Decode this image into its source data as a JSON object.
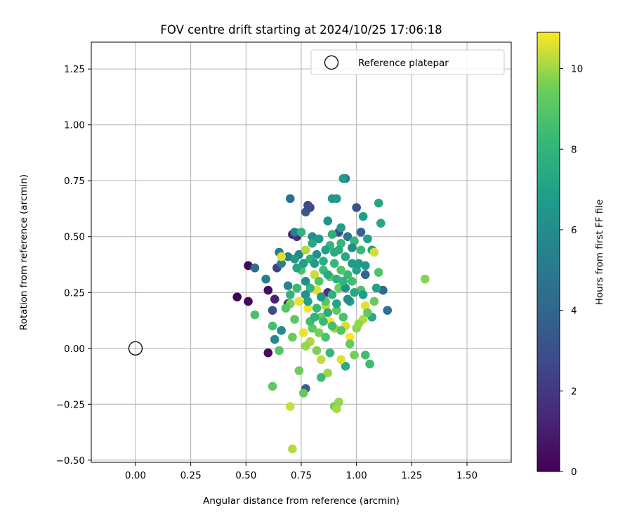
{
  "chart_data": {
    "type": "scatter",
    "title": "FOV centre drift starting at 2024/10/25 17:06:18",
    "xlabel": "Angular distance from reference (arcmin)",
    "ylabel": "Rotation from reference (arcmin)",
    "xlim": [
      -0.2,
      1.7
    ],
    "ylim": [
      -0.51,
      1.37
    ],
    "xticks": [
      0.0,
      0.25,
      0.5,
      0.75,
      1.0,
      1.25,
      1.5
    ],
    "xtick_labels": [
      "0.00",
      "0.25",
      "0.50",
      "0.75",
      "1.00",
      "1.25",
      "1.50"
    ],
    "yticks": [
      -0.5,
      -0.25,
      0.0,
      0.25,
      0.5,
      0.75,
      1.0,
      1.25
    ],
    "ytick_labels": [
      "−0.50",
      "−0.25",
      "0.00",
      "0.25",
      "0.50",
      "0.75",
      "1.00",
      "1.25"
    ],
    "grid": true,
    "legend": {
      "position": "top-right",
      "entries": [
        "Reference platepar"
      ]
    },
    "reference_point": {
      "x": 0.0,
      "y": 0.0,
      "label": "Reference platepar"
    },
    "colorbar": {
      "label": "Hours from first FF file",
      "colormap": "viridis",
      "range": [
        0,
        10.9
      ],
      "ticks": [
        0,
        2,
        4,
        6,
        8,
        10
      ],
      "tick_labels": [
        "0",
        "2",
        "4",
        "6",
        "8",
        "10"
      ]
    },
    "points": [
      {
        "x": 0.46,
        "y": 0.23,
        "c": 0.1
      },
      {
        "x": 0.51,
        "y": 0.21,
        "c": 0.2
      },
      {
        "x": 0.51,
        "y": 0.37,
        "c": 0.3
      },
      {
        "x": 0.6,
        "y": 0.26,
        "c": 0.5
      },
      {
        "x": 0.6,
        "y": -0.02,
        "c": 0.4
      },
      {
        "x": 0.63,
        "y": 0.22,
        "c": 1.2
      },
      {
        "x": 0.69,
        "y": 0.2,
        "c": 1.0
      },
      {
        "x": 0.71,
        "y": 0.51,
        "c": 1.1
      },
      {
        "x": 0.73,
        "y": 0.5,
        "c": 1.8
      },
      {
        "x": 0.64,
        "y": 0.36,
        "c": 2.5
      },
      {
        "x": 0.62,
        "y": 0.17,
        "c": 3.0
      },
      {
        "x": 0.77,
        "y": 0.61,
        "c": 3.5
      },
      {
        "x": 0.78,
        "y": 0.64,
        "c": 2.6
      },
      {
        "x": 0.79,
        "y": 0.63,
        "c": 2.8
      },
      {
        "x": 0.77,
        "y": -0.18,
        "c": 3.5
      },
      {
        "x": 0.87,
        "y": 0.25,
        "c": 1.9
      },
      {
        "x": 0.92,
        "y": 0.52,
        "c": 3.0
      },
      {
        "x": 1.0,
        "y": 0.63,
        "c": 3.2
      },
      {
        "x": 1.04,
        "y": 0.33,
        "c": 4.0
      },
      {
        "x": 1.12,
        "y": 0.26,
        "c": 4.2
      },
      {
        "x": 1.14,
        "y": 0.17,
        "c": 4.5
      },
      {
        "x": 0.54,
        "y": 0.36,
        "c": 4.3
      },
      {
        "x": 0.7,
        "y": 0.67,
        "c": 4.5
      },
      {
        "x": 0.95,
        "y": 0.76,
        "c": 4.6
      },
      {
        "x": 0.96,
        "y": 0.5,
        "c": 4.8
      },
      {
        "x": 1.02,
        "y": 0.52,
        "c": 4.0
      },
      {
        "x": 0.65,
        "y": 0.43,
        "c": 5.0
      },
      {
        "x": 0.59,
        "y": 0.31,
        "c": 5.1
      },
      {
        "x": 0.66,
        "y": 0.38,
        "c": 5.3
      },
      {
        "x": 0.69,
        "y": 0.41,
        "c": 5.4
      },
      {
        "x": 0.72,
        "y": 0.52,
        "c": 5.5
      },
      {
        "x": 0.74,
        "y": 0.42,
        "c": 5.6
      },
      {
        "x": 0.69,
        "y": 0.28,
        "c": 5.7
      },
      {
        "x": 0.63,
        "y": 0.04,
        "c": 5.8
      },
      {
        "x": 0.66,
        "y": 0.08,
        "c": 5.9
      },
      {
        "x": 0.77,
        "y": 0.3,
        "c": 6.0
      },
      {
        "x": 0.8,
        "y": 0.5,
        "c": 6.1
      },
      {
        "x": 0.82,
        "y": 0.42,
        "c": 6.2
      },
      {
        "x": 0.87,
        "y": 0.57,
        "c": 6.3
      },
      {
        "x": 0.89,
        "y": 0.67,
        "c": 6.4
      },
      {
        "x": 0.91,
        "y": 0.67,
        "c": 6.5
      },
      {
        "x": 0.94,
        "y": 0.76,
        "c": 6.6
      },
      {
        "x": 0.98,
        "y": 0.38,
        "c": 6.7
      },
      {
        "x": 1.03,
        "y": 0.59,
        "c": 6.8
      },
      {
        "x": 1.05,
        "y": 0.49,
        "c": 6.9
      },
      {
        "x": 1.07,
        "y": 0.44,
        "c": 7.0
      },
      {
        "x": 1.09,
        "y": 0.27,
        "c": 7.1
      },
      {
        "x": 1.1,
        "y": 0.65,
        "c": 7.2
      },
      {
        "x": 1.11,
        "y": 0.56,
        "c": 7.3
      },
      {
        "x": 1.07,
        "y": 0.14,
        "c": 7.4
      },
      {
        "x": 0.95,
        "y": -0.08,
        "c": 7.5
      },
      {
        "x": 0.9,
        "y": 0.43,
        "c": 7.6
      },
      {
        "x": 0.85,
        "y": 0.39,
        "c": 7.7
      },
      {
        "x": 0.79,
        "y": 0.4,
        "c": 7.8
      },
      {
        "x": 0.75,
        "y": 0.52,
        "c": 7.9
      },
      {
        "x": 0.88,
        "y": 0.46,
        "c": 8.0
      },
      {
        "x": 0.93,
        "y": 0.47,
        "c": 8.1
      },
      {
        "x": 0.99,
        "y": 0.48,
        "c": 8.2
      },
      {
        "x": 1.02,
        "y": 0.44,
        "c": 8.3
      },
      {
        "x": 1.06,
        "y": -0.07,
        "c": 8.4
      },
      {
        "x": 1.04,
        "y": -0.03,
        "c": 8.5
      },
      {
        "x": 0.62,
        "y": 0.1,
        "c": 8.6
      },
      {
        "x": 0.54,
        "y": 0.15,
        "c": 8.7
      },
      {
        "x": 0.62,
        "y": -0.17,
        "c": 9.2
      },
      {
        "x": 0.65,
        "y": -0.01,
        "c": 9.0
      },
      {
        "x": 0.76,
        "y": -0.2,
        "c": 9.3
      },
      {
        "x": 0.9,
        "y": -0.26,
        "c": 9.5
      },
      {
        "x": 1.1,
        "y": 0.34,
        "c": 8.8
      },
      {
        "x": 1.31,
        "y": 0.31,
        "c": 9.8
      },
      {
        "x": 1.08,
        "y": 0.43,
        "c": 10.5
      },
      {
        "x": 0.66,
        "y": 0.41,
        "c": 10.6
      },
      {
        "x": 0.7,
        "y": -0.26,
        "c": 10.4
      },
      {
        "x": 0.71,
        "y": -0.45,
        "c": 10.2
      },
      {
        "x": 0.91,
        "y": -0.27,
        "c": 10.1
      },
      {
        "x": 0.92,
        "y": -0.24,
        "c": 9.9
      },
      {
        "x": 0.7,
        "y": 0.2,
        "c": 9.6
      },
      {
        "x": 0.74,
        "y": 0.21,
        "c": 10.7
      },
      {
        "x": 0.78,
        "y": 0.18,
        "c": 10.8
      },
      {
        "x": 0.82,
        "y": 0.26,
        "c": 10.6
      },
      {
        "x": 0.86,
        "y": 0.19,
        "c": 10.3
      },
      {
        "x": 0.88,
        "y": 0.12,
        "c": 10.8
      },
      {
        "x": 0.9,
        "y": 0.09,
        "c": 10.0
      },
      {
        "x": 0.92,
        "y": 0.27,
        "c": 9.4
      },
      {
        "x": 0.95,
        "y": 0.1,
        "c": 10.5
      },
      {
        "x": 0.97,
        "y": 0.05,
        "c": 10.9
      },
      {
        "x": 1.0,
        "y": 0.09,
        "c": 9.8
      },
      {
        "x": 1.03,
        "y": 0.13,
        "c": 10.2
      },
      {
        "x": 1.04,
        "y": 0.19,
        "c": 10.6
      },
      {
        "x": 0.79,
        "y": 0.03,
        "c": 10.1
      },
      {
        "x": 0.82,
        "y": -0.01,
        "c": 9.7
      },
      {
        "x": 0.84,
        "y": -0.05,
        "c": 10.3
      },
      {
        "x": 0.87,
        "y": -0.11,
        "c": 10.0
      },
      {
        "x": 0.93,
        "y": -0.05,
        "c": 10.6
      },
      {
        "x": 0.74,
        "y": -0.1,
        "c": 9.5
      },
      {
        "x": 0.77,
        "y": 0.01,
        "c": 9.9
      },
      {
        "x": 0.8,
        "y": 0.09,
        "c": 9.2
      },
      {
        "x": 0.84,
        "y": 0.14,
        "c": 9.4
      },
      {
        "x": 0.86,
        "y": 0.21,
        "c": 9.0
      },
      {
        "x": 0.88,
        "y": 0.32,
        "c": 9.3
      },
      {
        "x": 0.81,
        "y": 0.33,
        "c": 10.4
      },
      {
        "x": 0.77,
        "y": 0.44,
        "c": 10.2
      },
      {
        "x": 0.72,
        "y": 0.13,
        "c": 9.1
      },
      {
        "x": 0.68,
        "y": 0.18,
        "c": 8.9
      },
      {
        "x": 0.71,
        "y": 0.05,
        "c": 9.4
      },
      {
        "x": 0.76,
        "y": 0.07,
        "c": 10.7
      },
      {
        "x": 0.83,
        "y": 0.07,
        "c": 9.6
      },
      {
        "x": 0.91,
        "y": 0.17,
        "c": 9.1
      },
      {
        "x": 0.94,
        "y": 0.14,
        "c": 8.7
      },
      {
        "x": 0.97,
        "y": 0.02,
        "c": 9.3
      },
      {
        "x": 0.99,
        "y": -0.03,
        "c": 9.6
      },
      {
        "x": 1.01,
        "y": 0.11,
        "c": 9.9
      },
      {
        "x": 1.05,
        "y": 0.16,
        "c": 9.2
      },
      {
        "x": 1.08,
        "y": 0.21,
        "c": 9.4
      },
      {
        "x": 1.02,
        "y": 0.26,
        "c": 8.6
      },
      {
        "x": 0.98,
        "y": 0.3,
        "c": 8.5
      },
      {
        "x": 0.96,
        "y": 0.33,
        "c": 8.3
      },
      {
        "x": 0.93,
        "y": 0.35,
        "c": 8.8
      },
      {
        "x": 0.9,
        "y": 0.38,
        "c": 8.2
      },
      {
        "x": 0.85,
        "y": 0.35,
        "c": 8.4
      },
      {
        "x": 0.83,
        "y": 0.3,
        "c": 8.9
      },
      {
        "x": 0.79,
        "y": 0.27,
        "c": 8.1
      },
      {
        "x": 0.75,
        "y": 0.35,
        "c": 8.7
      },
      {
        "x": 0.73,
        "y": 0.27,
        "c": 8.3
      },
      {
        "x": 0.7,
        "y": 0.24,
        "c": 8.0
      },
      {
        "x": 0.79,
        "y": 0.12,
        "c": 8.5
      },
      {
        "x": 0.82,
        "y": 0.18,
        "c": 8.2
      },
      {
        "x": 0.86,
        "y": 0.05,
        "c": 8.7
      },
      {
        "x": 0.88,
        "y": -0.02,
        "c": 8.1
      },
      {
        "x": 0.84,
        "y": -0.13,
        "c": 8.4
      },
      {
        "x": 0.89,
        "y": 0.24,
        "c": 7.9
      },
      {
        "x": 0.92,
        "y": 0.44,
        "c": 7.6
      },
      {
        "x": 0.95,
        "y": 0.41,
        "c": 7.3
      },
      {
        "x": 0.97,
        "y": 0.21,
        "c": 6.9
      },
      {
        "x": 1.0,
        "y": 0.35,
        "c": 7.1
      },
      {
        "x": 1.01,
        "y": 0.38,
        "c": 6.6
      },
      {
        "x": 1.04,
        "y": 0.37,
        "c": 6.4
      },
      {
        "x": 0.86,
        "y": 0.44,
        "c": 7.0
      },
      {
        "x": 0.81,
        "y": 0.38,
        "c": 6.7
      },
      {
        "x": 0.76,
        "y": 0.38,
        "c": 6.9
      },
      {
        "x": 0.73,
        "y": 0.36,
        "c": 7.2
      },
      {
        "x": 0.72,
        "y": 0.4,
        "c": 6.5
      },
      {
        "x": 0.77,
        "y": 0.24,
        "c": 6.2
      },
      {
        "x": 0.84,
        "y": 0.23,
        "c": 6.4
      },
      {
        "x": 0.95,
        "y": 0.27,
        "c": 6.1
      },
      {
        "x": 0.98,
        "y": 0.45,
        "c": 6.0
      },
      {
        "x": 0.83,
        "y": 0.49,
        "c": 6.6
      },
      {
        "x": 0.8,
        "y": 0.47,
        "c": 7.4
      },
      {
        "x": 0.89,
        "y": 0.51,
        "c": 7.7
      },
      {
        "x": 0.93,
        "y": 0.54,
        "c": 6.8
      },
      {
        "x": 0.87,
        "y": 0.33,
        "c": 7.5
      },
      {
        "x": 0.91,
        "y": 0.31,
        "c": 7.8
      },
      {
        "x": 0.94,
        "y": 0.3,
        "c": 8.0
      },
      {
        "x": 0.99,
        "y": 0.25,
        "c": 7.3
      },
      {
        "x": 1.03,
        "y": 0.24,
        "c": 6.8
      },
      {
        "x": 0.96,
        "y": 0.22,
        "c": 5.9
      },
      {
        "x": 0.91,
        "y": 0.2,
        "c": 7.2
      },
      {
        "x": 0.87,
        "y": 0.16,
        "c": 7.6
      },
      {
        "x": 0.81,
        "y": 0.14,
        "c": 7.9
      },
      {
        "x": 0.78,
        "y": 0.21,
        "c": 7.0
      },
      {
        "x": 0.85,
        "y": 0.12,
        "c": 8.3
      },
      {
        "x": 0.89,
        "y": 0.1,
        "c": 8.6
      },
      {
        "x": 0.93,
        "y": 0.08,
        "c": 8.9
      }
    ]
  }
}
